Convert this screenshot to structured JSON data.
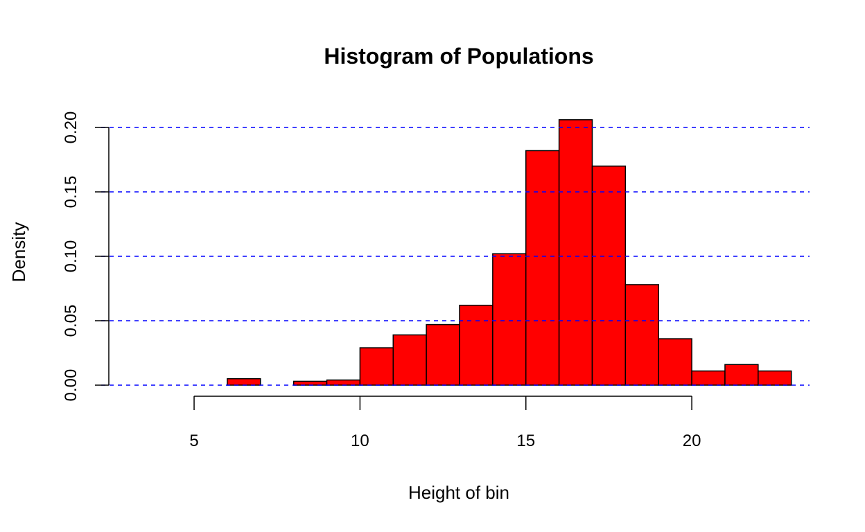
{
  "chart_data": {
    "type": "bar",
    "title": "Histogram of Populations",
    "xlabel": "Height of bin",
    "ylabel": "Density",
    "bins": [
      {
        "start": 3,
        "end": 4,
        "value": 0.0
      },
      {
        "start": 4,
        "end": 5,
        "value": 0.0
      },
      {
        "start": 5,
        "end": 6,
        "value": 0.0
      },
      {
        "start": 6,
        "end": 7,
        "value": 0.005
      },
      {
        "start": 7,
        "end": 8,
        "value": 0.0
      },
      {
        "start": 8,
        "end": 9,
        "value": 0.003
      },
      {
        "start": 9,
        "end": 10,
        "value": 0.004
      },
      {
        "start": 10,
        "end": 11,
        "value": 0.029
      },
      {
        "start": 11,
        "end": 12,
        "value": 0.039
      },
      {
        "start": 12,
        "end": 13,
        "value": 0.047
      },
      {
        "start": 13,
        "end": 14,
        "value": 0.062
      },
      {
        "start": 14,
        "end": 15,
        "value": 0.102
      },
      {
        "start": 15,
        "end": 16,
        "value": 0.182
      },
      {
        "start": 16,
        "end": 17,
        "value": 0.206
      },
      {
        "start": 17,
        "end": 18,
        "value": 0.17
      },
      {
        "start": 18,
        "end": 19,
        "value": 0.078
      },
      {
        "start": 19,
        "end": 20,
        "value": 0.036
      },
      {
        "start": 20,
        "end": 21,
        "value": 0.011
      },
      {
        "start": 21,
        "end": 22,
        "value": 0.016
      },
      {
        "start": 22,
        "end": 23,
        "value": 0.011
      }
    ],
    "x_ticks": [
      "5",
      "10",
      "15",
      "20"
    ],
    "y_ticks": [
      "0.00",
      "0.05",
      "0.10",
      "0.15",
      "0.20"
    ],
    "x_tick_values": [
      5,
      10,
      15,
      20
    ],
    "y_tick_values": [
      0,
      0.05,
      0.1,
      0.15,
      0.2
    ],
    "xlim": [
      2.2,
      23.8
    ],
    "ylim": [
      0,
      0.206
    ],
    "gridlines_y": [
      0,
      0.05,
      0.1,
      0.15,
      0.2
    ],
    "grid": "horizontal dashed",
    "colors": {
      "bar_fill": "#ff0000",
      "bar_stroke": "#000000",
      "grid": "#0000ff"
    }
  }
}
